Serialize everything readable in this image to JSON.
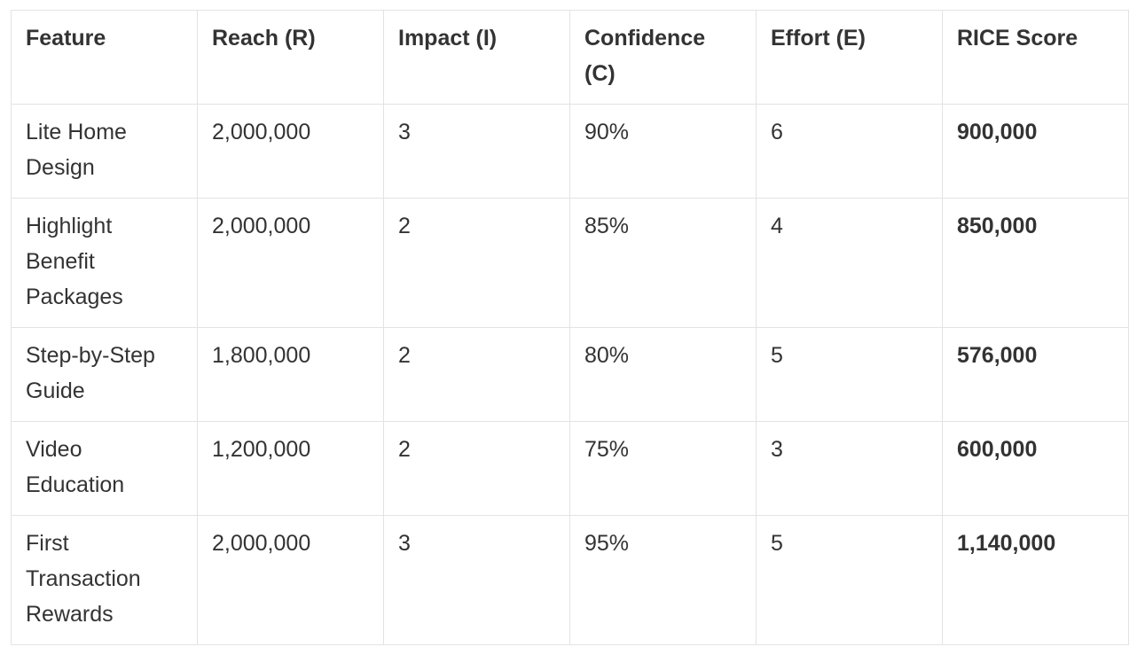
{
  "table": {
    "header": [
      "Feature",
      "Reach (R)",
      "Impact (I)",
      "Confidence (C)",
      "Effort (E)",
      "RICE Score"
    ],
    "rows": [
      [
        "Lite Home Design",
        "2,000,000",
        "3",
        "90%",
        "6",
        "900,000"
      ],
      [
        "Highlight Benefit Packages",
        "2,000,000",
        "2",
        "85%",
        "4",
        "850,000"
      ],
      [
        "Step-by-Step Guide",
        "1,800,000",
        "2",
        "80%",
        "5",
        "576,000"
      ],
      [
        "Video Education",
        "1,200,000",
        "2",
        "75%",
        "3",
        "600,000"
      ],
      [
        "First Transaction Rewards",
        "2,000,000",
        "3",
        "95%",
        "5",
        "1,140,000"
      ]
    ]
  }
}
